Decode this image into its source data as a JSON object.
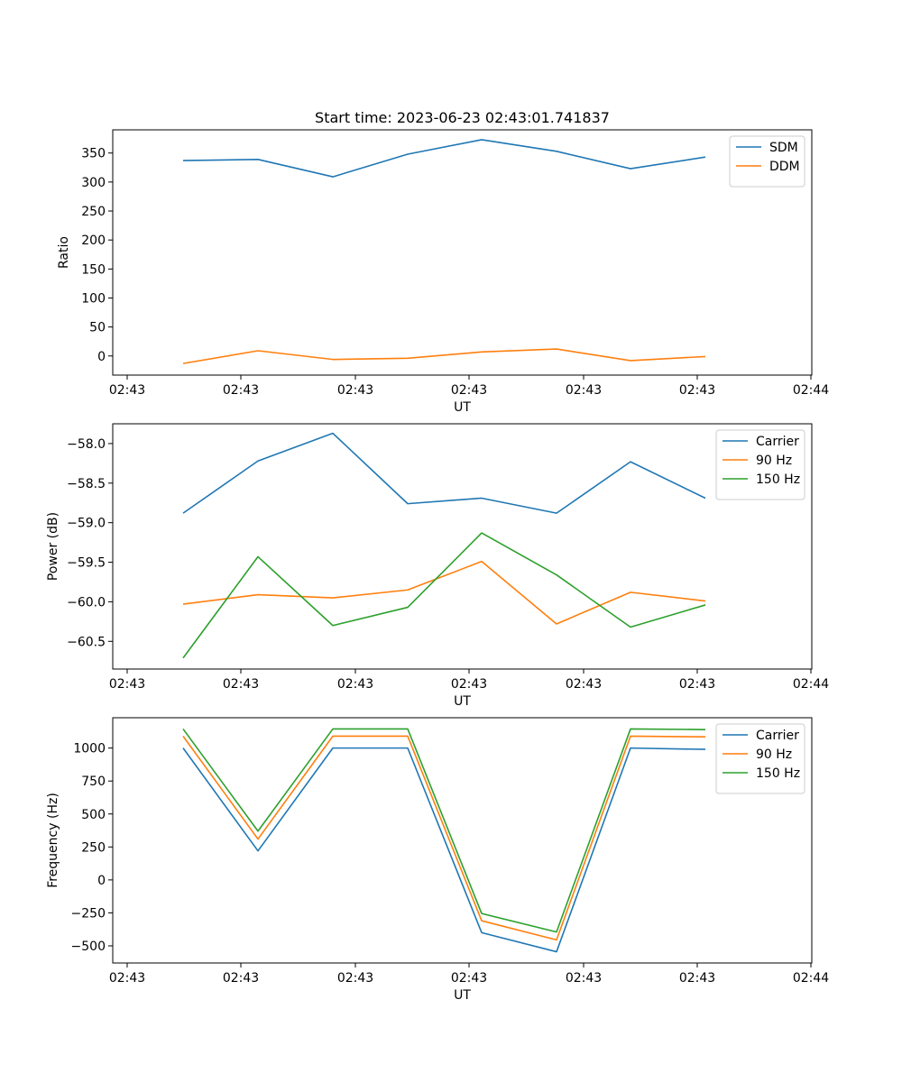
{
  "chart_data": [
    {
      "type": "line",
      "title": "Start time: 2023-06-23 02:43:01.741837",
      "xlabel": "UT",
      "ylabel": "Ratio",
      "ylim": [
        -33,
        390
      ],
      "yticks": [
        0,
        50,
        100,
        150,
        200,
        250,
        300,
        350
      ],
      "ytick_labels": [
        "0",
        "50",
        "100",
        "150",
        "200",
        "250",
        "300",
        "350"
      ],
      "xticks": [
        "02:43",
        "02:43",
        "02:43",
        "02:43",
        "02:43",
        "02:43",
        "02:44"
      ],
      "legend": "top-right",
      "grid": false,
      "series": [
        {
          "name": "SDM",
          "color": "#1f77b4",
          "values": [
            337,
            339,
            309,
            348,
            373,
            353,
            323,
            343
          ]
        },
        {
          "name": "DDM",
          "color": "#ff7f0e",
          "values": [
            -13,
            9,
            -6,
            -4,
            7,
            12,
            -8,
            -1
          ]
        }
      ]
    },
    {
      "type": "line",
      "title": "",
      "xlabel": "UT",
      "ylabel": "Power (dB)",
      "ylim": [
        -60.85,
        -57.75
      ],
      "yticks": [
        -58.0,
        -58.5,
        -59.0,
        -59.5,
        -60.0,
        -60.5
      ],
      "ytick_labels": [
        "−58.0",
        "−58.5",
        "−59.0",
        "−59.5",
        "−60.0",
        "−60.5"
      ],
      "xticks": [
        "02:43",
        "02:43",
        "02:43",
        "02:43",
        "02:43",
        "02:43",
        "02:44"
      ],
      "legend": "top-right",
      "grid": false,
      "series": [
        {
          "name": "Carrier",
          "color": "#1f77b4",
          "values": [
            -58.88,
            -58.22,
            -57.87,
            -58.76,
            -58.69,
            -58.88,
            -58.23,
            -58.69
          ]
        },
        {
          "name": "90 Hz",
          "color": "#ff7f0e",
          "values": [
            -60.03,
            -59.91,
            -59.95,
            -59.85,
            -59.49,
            -60.28,
            -59.88,
            -59.99
          ]
        },
        {
          "name": "150 Hz",
          "color": "#2ca02c",
          "values": [
            -60.71,
            -59.43,
            -60.3,
            -60.07,
            -59.13,
            -59.66,
            -60.32,
            -60.04
          ]
        }
      ]
    },
    {
      "type": "line",
      "title": "",
      "xlabel": "UT",
      "ylabel": "Frequency (Hz)",
      "ylim": [
        -630,
        1230
      ],
      "yticks": [
        -500,
        -250,
        0,
        250,
        500,
        750,
        1000
      ],
      "ytick_labels": [
        "−500",
        "−250",
        "0",
        "250",
        "500",
        "750",
        "1000"
      ],
      "xticks": [
        "02:43",
        "02:43",
        "02:43",
        "02:43",
        "02:43",
        "02:43",
        "02:44"
      ],
      "legend": "top-right",
      "grid": false,
      "series": [
        {
          "name": "Carrier",
          "color": "#1f77b4",
          "values": [
            1000,
            220,
            1000,
            1000,
            -400,
            -545,
            1000,
            990
          ]
        },
        {
          "name": "90 Hz",
          "color": "#ff7f0e",
          "values": [
            1090,
            310,
            1090,
            1090,
            -310,
            -455,
            1090,
            1085
          ]
        },
        {
          "name": "150 Hz",
          "color": "#2ca02c",
          "values": [
            1145,
            370,
            1145,
            1145,
            -255,
            -395,
            1145,
            1140
          ]
        }
      ]
    }
  ]
}
